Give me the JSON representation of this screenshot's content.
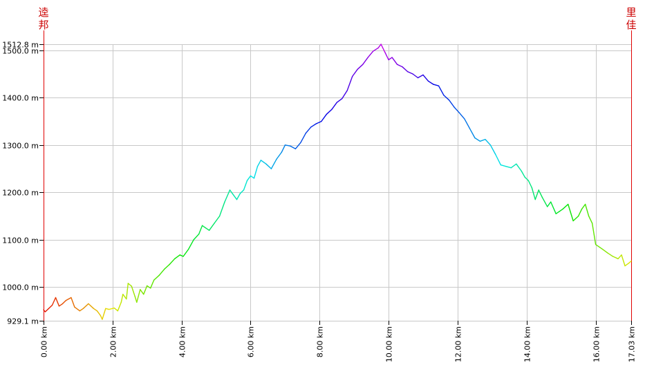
{
  "chart_data": {
    "type": "line",
    "title": "",
    "xlabel": "",
    "ylabel": "",
    "start_label": "逵邦",
    "end_label": "里佳",
    "xlim": [
      0,
      17.03
    ],
    "ylim": [
      929.1,
      1512.8
    ],
    "x_ticks": [
      {
        "value": 0,
        "label": "0.00 km"
      },
      {
        "value": 2,
        "label": "2.00 km"
      },
      {
        "value": 4,
        "label": "4.00 km"
      },
      {
        "value": 6,
        "label": "6.00 km"
      },
      {
        "value": 8,
        "label": "8.00 km"
      },
      {
        "value": 10,
        "label": "10.00 km"
      },
      {
        "value": 12,
        "label": "12.00 km"
      },
      {
        "value": 14,
        "label": "14.00 km"
      },
      {
        "value": 16,
        "label": "16.00 km"
      },
      {
        "value": 17.03,
        "label": "17.03 km"
      }
    ],
    "y_ticks": [
      {
        "value": 929.1,
        "label": "929.1 m"
      },
      {
        "value": 1000,
        "label": "1000.0 m"
      },
      {
        "value": 1100,
        "label": "1100.0 m"
      },
      {
        "value": 1200,
        "label": "1200.0 m"
      },
      {
        "value": 1300,
        "label": "1300.0 m"
      },
      {
        "value": 1400,
        "label": "1400.0 m"
      },
      {
        "value": 1500,
        "label": "1500.0 m"
      },
      {
        "value": 1512.8,
        "label": "1512.8 m"
      }
    ],
    "grid": true,
    "line_color_scheme": "rainbow by distance (red → orange → yellow → green → cyan → blue → violet → blue → cyan → green → yellow)",
    "series": [
      {
        "x": [
          0.0,
          0.05,
          0.15,
          0.25,
          0.35,
          0.45,
          0.55,
          0.65,
          0.8,
          0.9,
          1.05,
          1.15,
          1.3,
          1.45,
          1.55,
          1.65,
          1.7,
          1.8,
          1.9,
          2.05,
          2.15,
          2.25,
          2.3,
          2.4,
          2.45,
          2.55,
          2.65,
          2.7,
          2.8,
          2.9,
          3.0,
          3.1,
          3.2,
          3.35,
          3.5,
          3.65,
          3.8,
          3.95,
          4.05,
          4.2,
          4.35,
          4.5,
          4.6,
          4.7,
          4.8,
          4.95,
          5.1,
          5.25,
          5.4,
          5.5,
          5.6,
          5.7,
          5.8,
          5.9,
          6.0,
          6.1,
          6.2,
          6.3,
          6.45,
          6.6,
          6.75,
          6.9,
          7.0,
          7.15,
          7.3,
          7.45,
          7.6,
          7.75,
          7.9,
          8.05,
          8.2,
          8.35,
          8.5,
          8.65,
          8.8,
          8.95,
          9.1,
          9.25,
          9.4,
          9.55,
          9.7,
          9.78,
          9.9,
          10.0,
          10.1,
          10.25,
          10.4,
          10.55,
          10.7,
          10.85,
          11.0,
          11.15,
          11.3,
          11.45,
          11.6,
          11.75,
          11.9,
          12.05,
          12.2,
          12.35,
          12.5,
          12.65,
          12.8,
          12.95,
          13.1,
          13.25,
          13.4,
          13.55,
          13.7,
          13.85,
          13.95,
          14.05,
          14.15,
          14.25,
          14.35,
          14.45,
          14.6,
          14.7,
          14.85,
          14.95,
          15.05,
          15.2,
          15.35,
          15.5,
          15.6,
          15.7,
          15.8,
          15.9,
          16.0,
          16.2,
          16.35,
          16.5,
          16.65,
          16.75,
          16.85,
          16.95,
          17.03
        ],
        "y": [
          952,
          948,
          955,
          962,
          978,
          960,
          965,
          972,
          978,
          958,
          950,
          955,
          965,
          955,
          950,
          940,
          932,
          955,
          953,
          956,
          950,
          968,
          985,
          975,
          1008,
          1002,
          980,
          968,
          995,
          985,
          1003,
          998,
          1015,
          1025,
          1038,
          1048,
          1060,
          1068,
          1065,
          1080,
          1100,
          1112,
          1130,
          1125,
          1120,
          1135,
          1150,
          1180,
          1205,
          1195,
          1185,
          1198,
          1205,
          1225,
          1235,
          1230,
          1255,
          1268,
          1260,
          1250,
          1270,
          1285,
          1300,
          1298,
          1292,
          1305,
          1325,
          1338,
          1345,
          1350,
          1365,
          1375,
          1390,
          1398,
          1415,
          1445,
          1460,
          1470,
          1485,
          1498,
          1505,
          1512.8,
          1495,
          1480,
          1485,
          1470,
          1465,
          1455,
          1450,
          1442,
          1448,
          1435,
          1428,
          1425,
          1405,
          1395,
          1380,
          1368,
          1355,
          1335,
          1315,
          1308,
          1312,
          1300,
          1280,
          1258,
          1255,
          1252,
          1260,
          1245,
          1232,
          1225,
          1210,
          1185,
          1205,
          1190,
          1170,
          1180,
          1155,
          1160,
          1165,
          1175,
          1140,
          1150,
          1165,
          1175,
          1150,
          1135,
          1090,
          1080,
          1072,
          1065,
          1060,
          1068,
          1045,
          1050,
          1055
        ]
      }
    ]
  }
}
